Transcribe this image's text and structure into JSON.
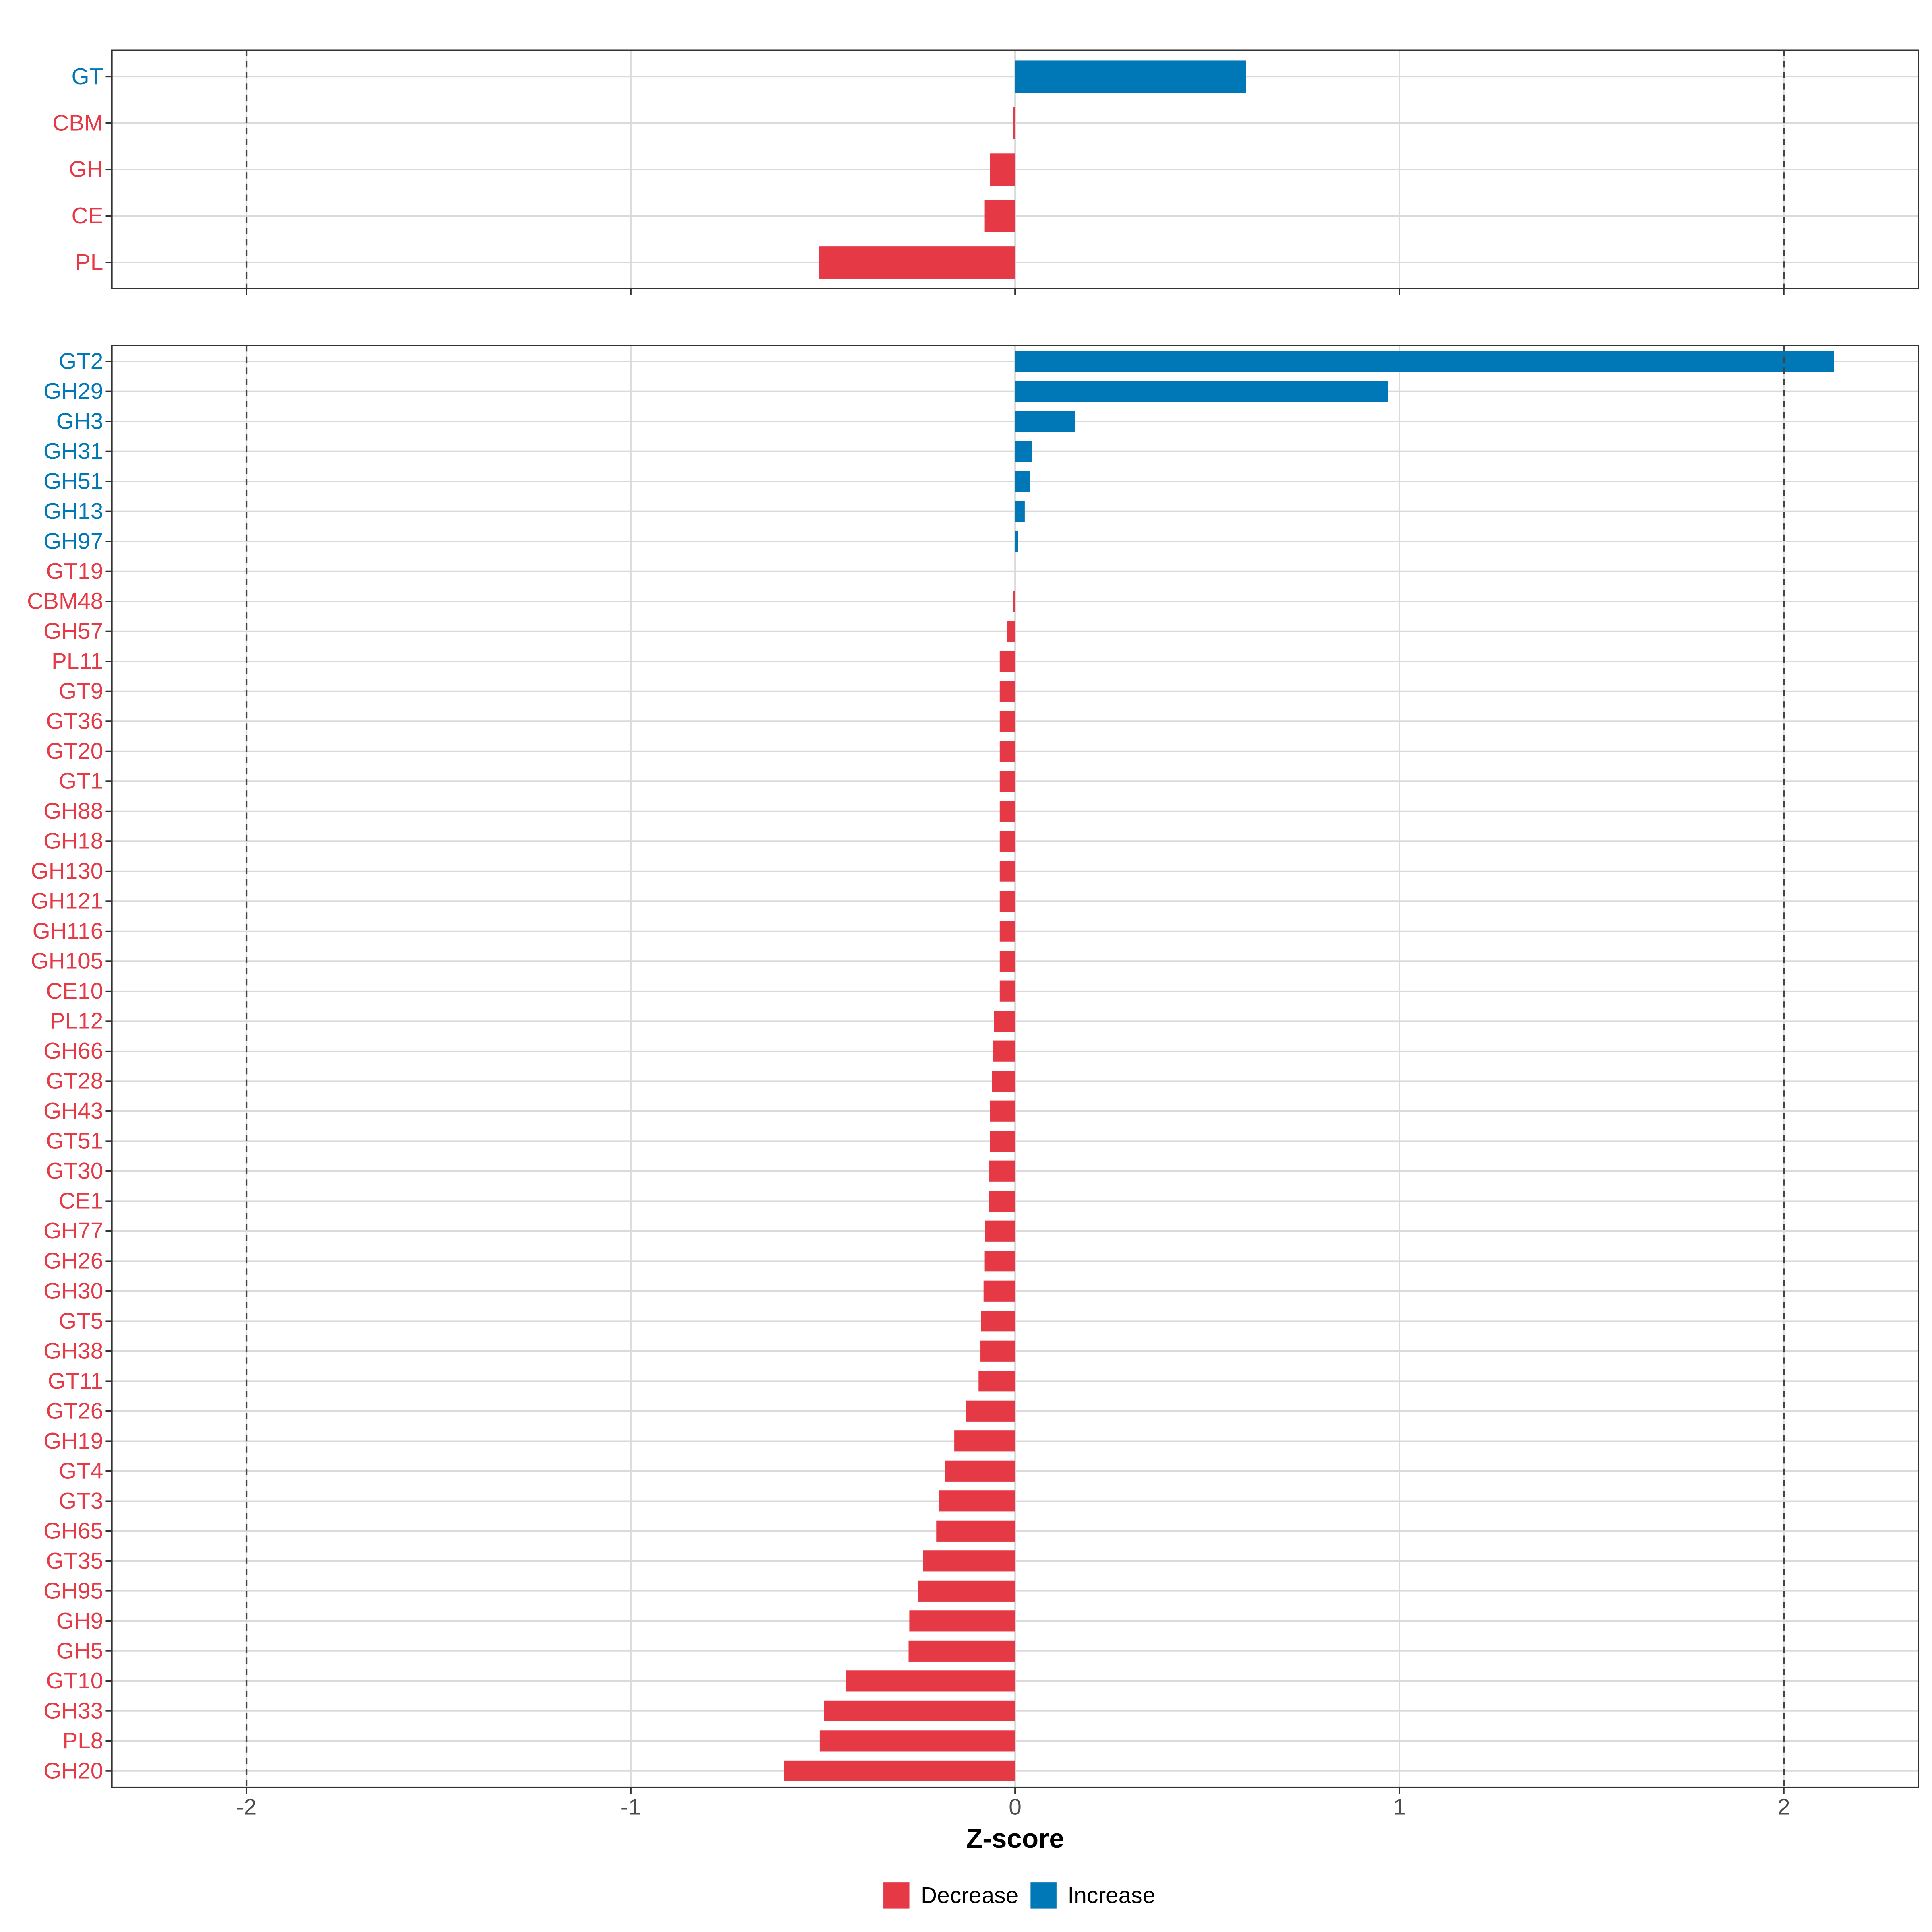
{
  "colors": {
    "decrease": "#E63946",
    "increase": "#0077B6",
    "grid": "#DADADA",
    "frame": "#333333",
    "tick_text": "#4D4D4D",
    "title_text": "#000000",
    "reference_line": "#444444"
  },
  "chart_data": {
    "type": "bar",
    "orientation": "horizontal",
    "xlabel": "Z-score",
    "xlim": [
      -2.35,
      2.35
    ],
    "x_ticks": [
      -2,
      -1,
      0,
      1,
      2
    ],
    "x_tick_labels": [
      "-2",
      "-1",
      "0",
      "1",
      "2"
    ],
    "reference_lines": [
      -2,
      2
    ],
    "grid": true,
    "legend": {
      "position": "bottom",
      "items": [
        {
          "key": "decrease",
          "label": "Decrease"
        },
        {
          "key": "increase",
          "label": "Increase"
        }
      ]
    },
    "panels": [
      {
        "name": "family",
        "categories": [
          "GT",
          "CBM",
          "GH",
          "CE",
          "PL"
        ],
        "values": [
          0.6,
          -0.005,
          -0.065,
          -0.08,
          -0.51
        ],
        "groups": [
          "increase",
          "decrease",
          "decrease",
          "decrease",
          "decrease"
        ]
      },
      {
        "name": "subfamily",
        "categories": [
          "GT2",
          "GH29",
          "GH3",
          "GH31",
          "GH51",
          "GH13",
          "GH97",
          "GT19",
          "CBM48",
          "GH57",
          "PL11",
          "GT9",
          "GT36",
          "GT20",
          "GT1",
          "GH88",
          "GH18",
          "GH130",
          "GH121",
          "GH116",
          "GH105",
          "CE10",
          "PL12",
          "GH66",
          "GT28",
          "GH43",
          "GT51",
          "GT30",
          "CE1",
          "GH77",
          "GH26",
          "GH30",
          "GT5",
          "GH38",
          "GT11",
          "GT26",
          "GH19",
          "GT4",
          "GT3",
          "GH65",
          "GT35",
          "GH95",
          "GH9",
          "GH5",
          "GT10",
          "GH33",
          "PL8",
          "GH20"
        ],
        "values": [
          2.13,
          0.97,
          0.155,
          0.045,
          0.038,
          0.025,
          0.007,
          0.0,
          -0.005,
          -0.022,
          -0.04,
          -0.04,
          -0.04,
          -0.04,
          -0.04,
          -0.04,
          -0.04,
          -0.04,
          -0.04,
          -0.04,
          -0.04,
          -0.04,
          -0.055,
          -0.058,
          -0.06,
          -0.065,
          -0.066,
          -0.067,
          -0.068,
          -0.078,
          -0.08,
          -0.082,
          -0.088,
          -0.09,
          -0.095,
          -0.128,
          -0.158,
          -0.183,
          -0.198,
          -0.205,
          -0.24,
          -0.253,
          -0.275,
          -0.277,
          -0.44,
          -0.498,
          -0.508,
          -0.602
        ],
        "groups": [
          "increase",
          "increase",
          "increase",
          "increase",
          "increase",
          "increase",
          "increase",
          "decrease",
          "decrease",
          "decrease",
          "decrease",
          "decrease",
          "decrease",
          "decrease",
          "decrease",
          "decrease",
          "decrease",
          "decrease",
          "decrease",
          "decrease",
          "decrease",
          "decrease",
          "decrease",
          "decrease",
          "decrease",
          "decrease",
          "decrease",
          "decrease",
          "decrease",
          "decrease",
          "decrease",
          "decrease",
          "decrease",
          "decrease",
          "decrease",
          "decrease",
          "decrease",
          "decrease",
          "decrease",
          "decrease",
          "decrease",
          "decrease",
          "decrease",
          "decrease",
          "decrease",
          "decrease",
          "decrease",
          "decrease"
        ]
      }
    ]
  }
}
